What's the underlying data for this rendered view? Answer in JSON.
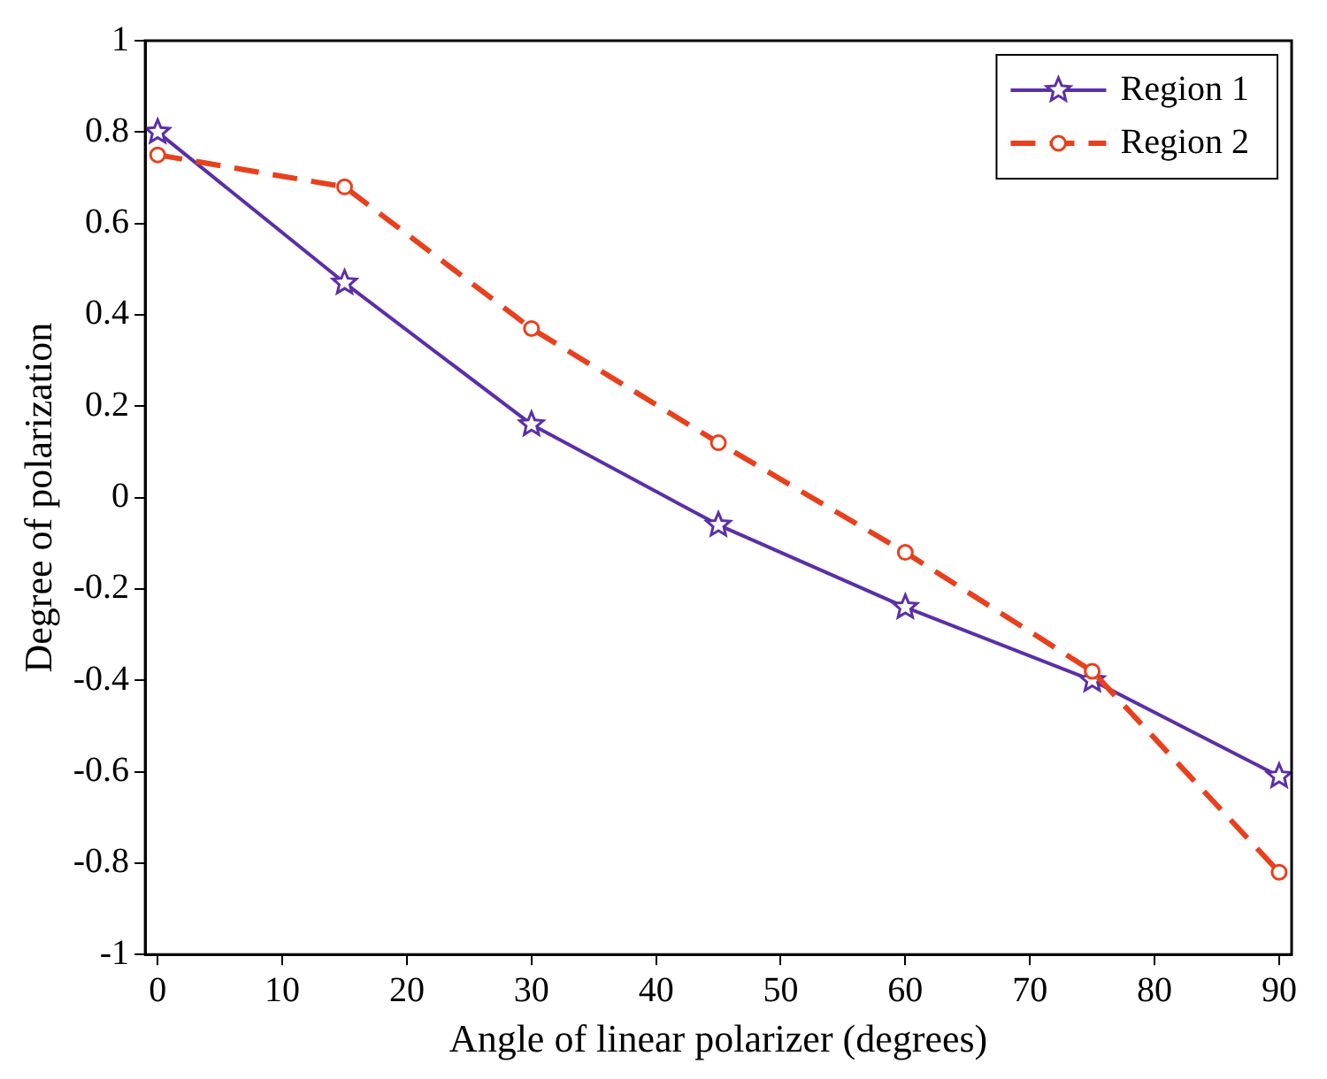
{
  "chart_data": {
    "type": "line",
    "xlabel": "Angle of linear polarizer (degrees)",
    "ylabel": "Degree of polarization",
    "x": [
      0,
      15,
      30,
      45,
      60,
      75,
      90
    ],
    "series": [
      {
        "name": "Region 1",
        "color": "#5b2fa8",
        "values": [
          0.8,
          0.47,
          0.16,
          -0.06,
          -0.24,
          -0.4,
          -0.61
        ],
        "marker": "star",
        "line_style": "solid"
      },
      {
        "name": "Region 2",
        "color": "#e8401c",
        "values": [
          0.75,
          0.68,
          0.37,
          0.12,
          -0.12,
          -0.38,
          -0.82
        ],
        "marker": "circle",
        "line_style": "dashed"
      }
    ],
    "xlim": [
      -1,
      91
    ],
    "xticks": [
      0,
      10,
      20,
      30,
      40,
      50,
      60,
      70,
      80,
      90
    ],
    "ylim": [
      -1,
      1
    ],
    "yticks": [
      -1,
      -0.8,
      -0.6,
      -0.4,
      -0.2,
      0,
      0.2,
      0.4,
      0.6,
      0.8,
      1
    ],
    "grid": false,
    "legend": "top right"
  }
}
